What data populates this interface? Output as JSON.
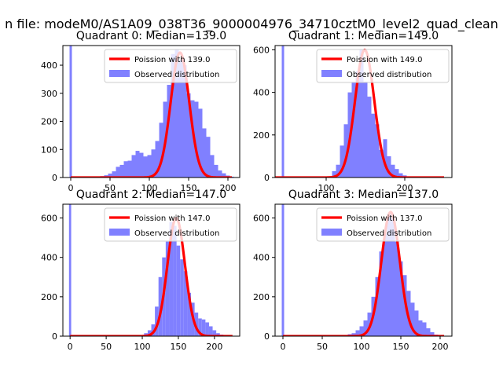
{
  "figure": {
    "suptitle": "n file: modeM0/AS1A09_038T36_9000004976_34710cztM0_level2_quad_clean"
  },
  "colors": {
    "hist": "#8080ff",
    "hist_edge": "#0000ff",
    "fit": "#ff0000",
    "axes": "#000000",
    "legend_border": "#cccccc"
  },
  "chart_data": [
    {
      "type": "bar",
      "title": "Quadrant 0: Median=139.0",
      "xlim": [
        -10,
        215
      ],
      "ylim": [
        0,
        470
      ],
      "xticks": [
        0,
        50,
        100,
        150,
        200
      ],
      "yticks": [
        0,
        100,
        200,
        300,
        400
      ],
      "legend": {
        "placement": "top-right",
        "line_label": "Poission with 139.0",
        "bar_label": "Observed distribution"
      },
      "poisson": {
        "mean": 139.0,
        "peak": 445
      },
      "spike": {
        "x": 0,
        "value": 470
      },
      "bins": {
        "x": [
          10,
          15,
          20,
          25,
          30,
          35,
          40,
          45,
          50,
          55,
          60,
          65,
          70,
          75,
          80,
          85,
          90,
          95,
          100,
          105,
          110,
          115,
          120,
          125,
          130,
          135,
          140,
          145,
          150,
          155,
          160,
          165,
          170,
          175,
          180,
          185,
          190,
          195,
          200,
          205
        ],
        "values": [
          0,
          0,
          0,
          0,
          2,
          3,
          5,
          8,
          14,
          22,
          38,
          45,
          58,
          60,
          80,
          95,
          88,
          75,
          80,
          100,
          130,
          195,
          270,
          330,
          440,
          455,
          420,
          400,
          300,
          275,
          270,
          245,
          175,
          145,
          80,
          45,
          25,
          15,
          7,
          3
        ]
      }
    },
    {
      "type": "bar",
      "title": "Quadrant 1: Median=149.0",
      "xlim": [
        35,
        260
      ],
      "ylim": [
        0,
        620
      ],
      "xticks": [
        100,
        200
      ],
      "yticks": [
        0,
        200,
        400,
        600
      ],
      "legend": {
        "placement": "top-right",
        "line_label": "Poission with 149.0",
        "bar_label": "Observed distribution"
      },
      "poisson": {
        "mean": 149.0,
        "peak": 600
      },
      "spike": {
        "x": 45,
        "value": 620
      },
      "bins": {
        "x": [
          110,
          115,
          120,
          125,
          130,
          135,
          140,
          145,
          150,
          155,
          160,
          165,
          170,
          175,
          180,
          185,
          190,
          195,
          200,
          205
        ],
        "values": [
          30,
          60,
          150,
          250,
          400,
          450,
          500,
          600,
          450,
          380,
          300,
          250,
          130,
          180,
          100,
          60,
          40,
          20,
          10,
          5
        ]
      }
    },
    {
      "type": "bar",
      "title": "Quadrant 2: Median=147.0",
      "xlim": [
        -10,
        235
      ],
      "ylim": [
        0,
        670
      ],
      "xticks": [
        0,
        50,
        100,
        150,
        200
      ],
      "yticks": [
        0,
        200,
        400,
        600
      ],
      "legend": {
        "placement": "top-right",
        "line_label": "Poission with 147.0",
        "bar_label": "Observed distribution"
      },
      "poisson": {
        "mean": 147.0,
        "peak": 600
      },
      "spike": {
        "x": 0,
        "value": 670
      },
      "bins": {
        "x": [
          100,
          105,
          110,
          115,
          120,
          125,
          130,
          135,
          140,
          145,
          150,
          155,
          160,
          165,
          170,
          175,
          180,
          185,
          190,
          195,
          200,
          205,
          210,
          215,
          220
        ],
        "values": [
          5,
          15,
          30,
          60,
          150,
          300,
          400,
          480,
          580,
          560,
          460,
          390,
          330,
          220,
          170,
          120,
          90,
          85,
          70,
          50,
          30,
          15,
          8,
          3,
          1
        ]
      }
    },
    {
      "type": "bar",
      "title": "Quadrant 3: Median=137.0",
      "xlim": [
        -10,
        215
      ],
      "ylim": [
        0,
        670
      ],
      "xticks": [
        0,
        50,
        100,
        150,
        200
      ],
      "yticks": [
        0,
        200,
        400,
        600
      ],
      "legend": {
        "placement": "top-right",
        "line_label": "Poission with 137.0",
        "bar_label": "Observed distribution"
      },
      "poisson": {
        "mean": 137.0,
        "peak": 630
      },
      "spike": {
        "x": 0,
        "value": 670
      },
      "bins": {
        "x": [
          80,
          85,
          90,
          95,
          100,
          105,
          110,
          115,
          120,
          125,
          130,
          135,
          140,
          145,
          150,
          155,
          160,
          165,
          170,
          175,
          180,
          185,
          190,
          195,
          200
        ],
        "values": [
          5,
          10,
          15,
          30,
          50,
          80,
          120,
          200,
          300,
          430,
          520,
          620,
          600,
          480,
          380,
          310,
          230,
          170,
          130,
          80,
          70,
          40,
          20,
          8,
          3
        ]
      }
    }
  ]
}
